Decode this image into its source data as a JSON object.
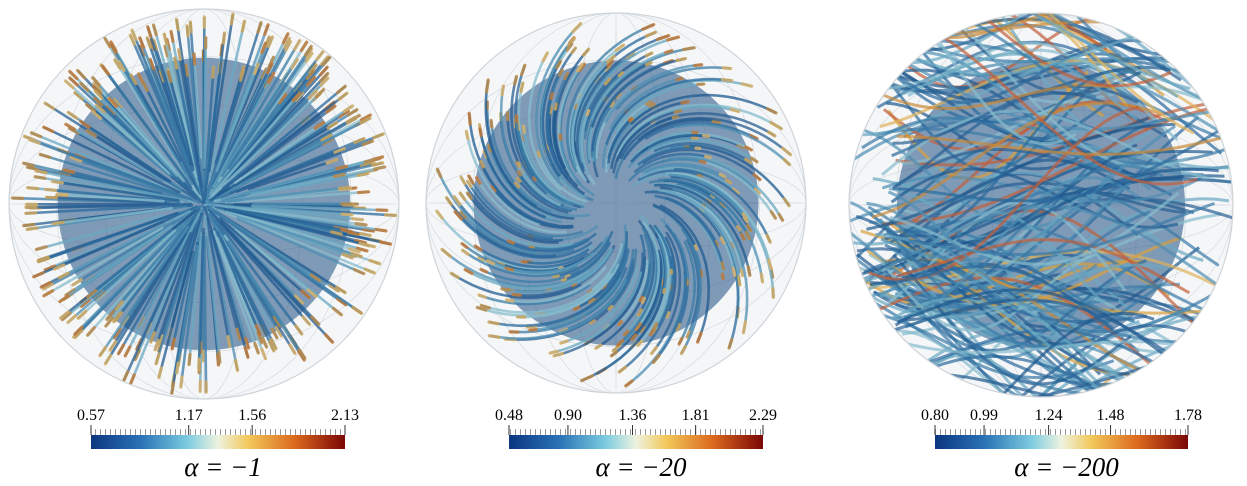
{
  "chart_data": [
    {
      "type": "colorbar",
      "title": "α = −1",
      "xlim": [
        0.57,
        2.13
      ],
      "xticks": [
        0.57,
        1.17,
        1.56,
        2.13
      ]
    },
    {
      "type": "colorbar",
      "title": "α = −20",
      "xlim": [
        0.48,
        2.29
      ],
      "xticks": [
        0.48,
        {
          "value": 0.9,
          "label": "0.90"
        },
        1.36,
        1.81,
        2.29
      ]
    },
    {
      "type": "colorbar",
      "title": "α = −200",
      "xlim": [
        0.8,
        1.78
      ],
      "xticks": [
        {
          "value": 0.8,
          "label": "0.80"
        },
        0.99,
        1.24,
        1.48,
        1.78
      ]
    }
  ]
}
